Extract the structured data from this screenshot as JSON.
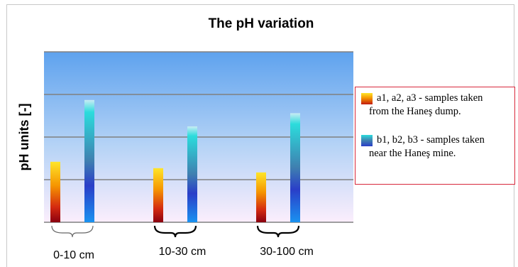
{
  "chart_data": {
    "type": "bar",
    "title": "The pH variation",
    "ylabel": "pH units [-]",
    "categories": [
      "0-10 cm",
      "10-30 cm",
      "30-100 cm"
    ],
    "series": [
      {
        "values": [
          1.42,
          1.27,
          1.17
        ]
      },
      {
        "values": [
          2.87,
          2.25,
          2.56
        ]
      }
    ],
    "ylim": [
      0,
      4
    ],
    "grid": true,
    "legend_position": "right"
  },
  "legend": {
    "items": [
      {
        "line1": "a1, a2, a3 - samples taken",
        "line2": "from the Haneş dump."
      },
      {
        "line1": "b1, b2, b3 - samples taken",
        "line2": "near the Haneş mine."
      }
    ]
  },
  "colors": {
    "plot_top": "#5ea2ee",
    "plot_bottom": "#fbeefc",
    "grid": "#808080",
    "legend_border": "#d8283c",
    "series_a_top": "#ffe52a",
    "series_a_mid": "#f59400",
    "series_a_bottom": "#8a0010",
    "series_b_top": "#2cdcdc",
    "series_b_mid": "#2a3ec8",
    "series_b_bottom": "#1a92f0"
  }
}
